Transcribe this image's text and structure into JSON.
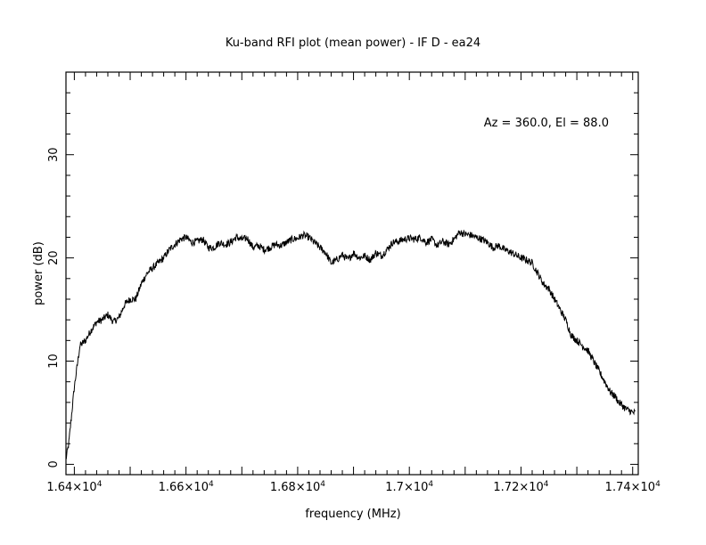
{
  "chart_data": {
    "type": "line",
    "title": "Ku-band RFI plot (mean power) - IF D - ea24",
    "xlabel": "frequency (MHz)",
    "ylabel": "power (dB)",
    "annotation": "Az = 360.0, El = 88.0",
    "xlim": [
      16385,
      17410
    ],
    "ylim": [
      -1,
      38
    ],
    "x_ticks": [
      {
        "value": 16400,
        "label": "1.64×10",
        "exp": "4"
      },
      {
        "value": 16600,
        "label": "1.66×10",
        "exp": "4"
      },
      {
        "value": 16800,
        "label": "1.68×10",
        "exp": "4"
      },
      {
        "value": 17000,
        "label": "1.7×10",
        "exp": "4"
      },
      {
        "value": 17200,
        "label": "1.72×10",
        "exp": "4"
      },
      {
        "value": 17400,
        "label": "1.74×10",
        "exp": "4"
      }
    ],
    "y_ticks": [
      {
        "value": 0,
        "label": "0"
      },
      {
        "value": 10,
        "label": "10"
      },
      {
        "value": 20,
        "label": "20"
      },
      {
        "value": 30,
        "label": "30"
      }
    ],
    "grid": false,
    "series": [
      {
        "color": "#000000",
        "x": [
          16385,
          16390,
          16400,
          16410,
          16420,
          16430,
          16440,
          16450,
          16460,
          16470,
          16480,
          16490,
          16500,
          16510,
          16520,
          16530,
          16540,
          16550,
          16560,
          16570,
          16580,
          16590,
          16600,
          16610,
          16620,
          16630,
          16640,
          16650,
          16660,
          16670,
          16680,
          16690,
          16700,
          16710,
          16720,
          16730,
          16740,
          16750,
          16760,
          16770,
          16780,
          16790,
          16800,
          16810,
          16820,
          16830,
          16840,
          16850,
          16860,
          16870,
          16880,
          16890,
          16900,
          16910,
          16920,
          16930,
          16940,
          16950,
          16960,
          16970,
          16980,
          16990,
          17000,
          17010,
          17020,
          17030,
          17040,
          17050,
          17060,
          17070,
          17080,
          17090,
          17100,
          17110,
          17120,
          17130,
          17140,
          17150,
          17160,
          17170,
          17180,
          17190,
          17200,
          17210,
          17220,
          17230,
          17240,
          17250,
          17260,
          17270,
          17280,
          17290,
          17300,
          17310,
          17320,
          17330,
          17340,
          17350,
          17360,
          17370,
          17375,
          17380,
          17385,
          17390,
          17395,
          17400,
          17405
        ],
        "y": [
          0.5,
          2.0,
          7.5,
          11.5,
          12.0,
          13.0,
          13.8,
          14.0,
          14.5,
          13.8,
          14.2,
          15.5,
          16.0,
          16.0,
          17.5,
          18.5,
          19.0,
          19.5,
          20.0,
          20.8,
          21.3,
          21.8,
          22.0,
          21.5,
          21.6,
          21.8,
          21.0,
          21.0,
          21.5,
          21.3,
          21.5,
          22.0,
          21.8,
          21.9,
          21.0,
          21.2,
          20.8,
          21.0,
          21.3,
          21.2,
          21.5,
          21.8,
          21.9,
          22.2,
          22.0,
          21.5,
          21.0,
          20.5,
          19.5,
          19.8,
          20.3,
          19.8,
          20.5,
          20.0,
          20.2,
          19.8,
          20.5,
          20.2,
          20.8,
          21.5,
          21.6,
          21.8,
          21.9,
          21.8,
          22.0,
          21.5,
          21.8,
          21.2,
          21.6,
          21.3,
          21.8,
          22.5,
          22.3,
          22.2,
          22.0,
          21.8,
          21.5,
          21.0,
          21.2,
          20.8,
          20.6,
          20.3,
          20.0,
          19.8,
          19.5,
          18.5,
          17.5,
          17.0,
          16.0,
          15.0,
          14.0,
          12.5,
          12.0,
          11.5,
          11.0,
          10.0,
          9.0,
          8.0,
          7.0,
          6.5,
          6.0,
          5.8,
          5.5,
          5.3,
          5.2,
          5.0,
          5.0
        ],
        "noise_db": 0.35
      }
    ]
  }
}
